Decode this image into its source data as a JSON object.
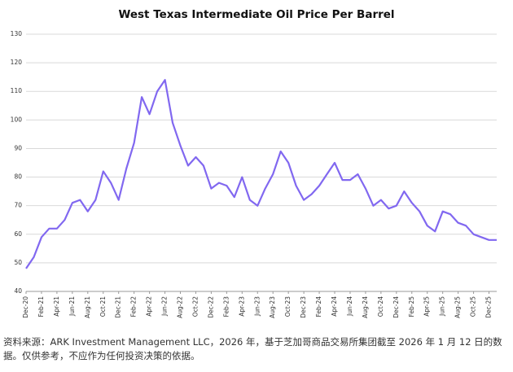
{
  "chart_data": {
    "type": "line",
    "title": "West Texas Intermediate Oil Price Per Barrel",
    "categories": [
      "Dec-20",
      null,
      "Feb-21",
      null,
      "Apr-21",
      null,
      "Jun-21",
      null,
      "Aug-21",
      null,
      "Oct-21",
      null,
      "Dec-21",
      null,
      "Feb-22",
      null,
      "Apr-22",
      null,
      "Jun-22",
      null,
      "Aug-22",
      null,
      "Oct-22",
      null,
      "Dec-22",
      null,
      "Feb-23",
      null,
      "Apr-23",
      null,
      "Jun-23",
      null,
      "Aug-23",
      null,
      "Oct-23",
      null,
      "Dec-23",
      null,
      "Feb-24",
      null,
      "Apr-24",
      null,
      "Jun-24",
      null,
      "Aug-24",
      null,
      "Oct-24",
      null,
      "Dec-24",
      null,
      "Feb-25",
      null,
      "Apr-25",
      null,
      "Jun-25",
      null,
      "Aug-25",
      null,
      "Oct-25",
      null,
      "Dec-25",
      null
    ],
    "values": [
      48,
      52,
      59,
      62,
      62,
      65,
      71,
      72,
      68,
      72,
      82,
      78,
      72,
      83,
      92,
      108,
      102,
      110,
      114,
      99,
      91,
      84,
      87,
      84,
      76,
      78,
      77,
      73,
      80,
      72,
      70,
      76,
      81,
      89,
      85,
      77,
      72,
      74,
      77,
      81,
      85,
      79,
      79,
      81,
      76,
      70,
      72,
      69,
      70,
      75,
      71,
      68,
      63,
      61,
      68,
      67,
      64,
      63,
      60,
      59,
      58,
      58
    ],
    "color": "#8168f0",
    "ylim": [
      40,
      130
    ],
    "yticks": [
      40,
      50,
      60,
      70,
      80,
      90,
      100,
      110,
      120,
      130
    ],
    "grid": true,
    "note": "资料来源：ARK Investment Management LLC，2026 年，基于芝加哥商品交易所集团截至 2026 年 1 月 12 日的数据。仅供参考，不应作为任何投资决策的依据。"
  }
}
